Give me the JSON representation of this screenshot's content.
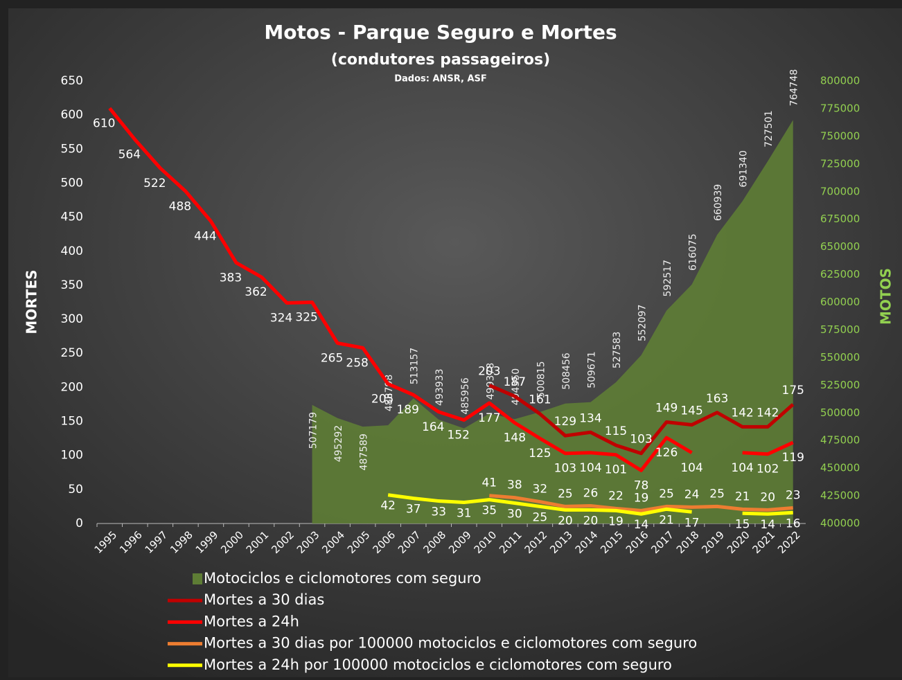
{
  "chart_data": {
    "type": "line",
    "title": "Motos - Parque Seguro e Mortes",
    "subtitle": "(condutores passageiros)",
    "source": "Dados: ANSR, ASF",
    "ylabel": "MORTES",
    "y2label": "MOTOS",
    "categories": [
      "1995",
      "1996",
      "1997",
      "1998",
      "1999",
      "2000",
      "2001",
      "2002",
      "2003",
      "2004",
      "2005",
      "2006",
      "2007",
      "2008",
      "2009",
      "2010",
      "2011",
      "2012",
      "2013",
      "2014",
      "2015",
      "2016",
      "2017",
      "2018",
      "2019",
      "2020",
      "2021",
      "2022"
    ],
    "ylim": [
      0,
      650
    ],
    "yticks": [
      0,
      50,
      100,
      150,
      200,
      250,
      300,
      350,
      400,
      450,
      500,
      550,
      600,
      650
    ],
    "y2lim": [
      400000,
      800000
    ],
    "y2ticks": [
      400000,
      425000,
      450000,
      475000,
      500000,
      525000,
      550000,
      575000,
      600000,
      625000,
      650000,
      675000,
      700000,
      725000,
      750000,
      775000,
      800000
    ],
    "series": [
      {
        "name": "Motociclos e ciclomotores com seguro",
        "type": "area",
        "axis": "y2",
        "color": "#5e7d35",
        "values": [
          null,
          null,
          null,
          null,
          null,
          null,
          null,
          null,
          507179,
          495292,
          487589,
          488798,
          513157,
          493933,
          485956,
          499378,
          494350,
          500815,
          508456,
          509671,
          527583,
          552097,
          592517,
          616075,
          660939,
          691340,
          727501,
          764748
        ]
      },
      {
        "name": "Mortes a 30 dias",
        "type": "line",
        "color": "#c00000",
        "values": [
          null,
          null,
          null,
          null,
          null,
          null,
          null,
          null,
          null,
          null,
          null,
          null,
          null,
          null,
          null,
          203,
          187,
          161,
          129,
          134,
          115,
          103,
          149,
          145,
          163,
          142,
          142,
          175
        ]
      },
      {
        "name": "Mortes a 24h",
        "type": "line",
        "color": "#ff0000",
        "values": [
          610,
          564,
          522,
          488,
          444,
          383,
          362,
          324,
          325,
          265,
          258,
          205,
          189,
          164,
          152,
          177,
          148,
          125,
          103,
          104,
          101,
          78,
          126,
          104,
          null,
          104,
          102,
          119
        ]
      },
      {
        "name": "Mortes a 30 dias por 100000 motociclos e ciclomotores com seguro",
        "type": "line",
        "color": "#ed7d31",
        "values": [
          null,
          null,
          null,
          null,
          null,
          null,
          null,
          null,
          null,
          null,
          null,
          null,
          null,
          null,
          null,
          41,
          38,
          32,
          25,
          26,
          22,
          19,
          25,
          24,
          25,
          21,
          20,
          23
        ]
      },
      {
        "name": "Mortes a 24h por 100000 motociclos e ciclomotores com seguro",
        "type": "line",
        "color": "#ffff00",
        "values": [
          null,
          null,
          null,
          null,
          null,
          null,
          null,
          null,
          null,
          null,
          null,
          42,
          37,
          33,
          31,
          35,
          30,
          25,
          20,
          20,
          19,
          14,
          21,
          17,
          null,
          15,
          14,
          16
        ]
      }
    ]
  }
}
